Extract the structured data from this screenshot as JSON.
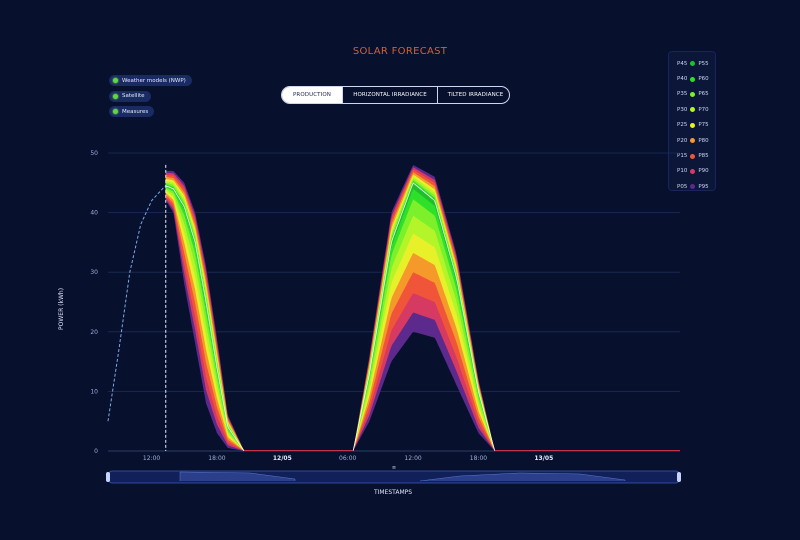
{
  "header": {
    "title": "SOLAR FORECAST"
  },
  "sources": [
    {
      "label": "Weather models (NWP)",
      "color": "#5fd83a"
    },
    {
      "label": "Satellite",
      "color": "#5fd83a"
    },
    {
      "label": "Measures",
      "color": "#5fd83a"
    }
  ],
  "tabs": [
    {
      "label": "PRODUCTION",
      "active": true
    },
    {
      "label": "HORIZONTAL IRRADIANCE",
      "active": false
    },
    {
      "label": "TILTED IRRADIANCE",
      "active": false
    }
  ],
  "legend": [
    {
      "low": "P45",
      "high": "P55",
      "color": "#1fbf2c"
    },
    {
      "low": "P40",
      "high": "P60",
      "color": "#2fe02a"
    },
    {
      "low": "P35",
      "high": "P65",
      "color": "#7cf02a"
    },
    {
      "low": "P30",
      "high": "P70",
      "color": "#b4f52a"
    },
    {
      "low": "P25",
      "high": "P75",
      "color": "#e8f02a"
    },
    {
      "low": "P20",
      "high": "P80",
      "color": "#f59a2a"
    },
    {
      "low": "P15",
      "high": "P85",
      "color": "#f0553a"
    },
    {
      "low": "P10",
      "high": "P90",
      "color": "#d63a62"
    },
    {
      "low": "P05",
      "high": "P95",
      "color": "#5b2a8c"
    }
  ],
  "axis": {
    "ylabel": "POWER (kWh)",
    "xlabel": "TIMESTAMPS"
  },
  "chart_data": {
    "type": "area",
    "ylabel": "POWER (kWh)",
    "xlabel": "TIMESTAMPS",
    "ylim": [
      0,
      50
    ],
    "yticks": [
      0,
      10,
      20,
      30,
      40,
      50
    ],
    "xlim": [
      8,
      60.5
    ],
    "xticks": [
      {
        "t": 12,
        "label": "12:00",
        "bold": false
      },
      {
        "t": 18,
        "label": "18:00",
        "bold": false
      },
      {
        "t": 24,
        "label": "12/05",
        "bold": true
      },
      {
        "t": 30,
        "label": "06:00",
        "bold": false
      },
      {
        "t": 36,
        "label": "12:00",
        "bold": false
      },
      {
        "t": 42,
        "label": "18:00",
        "bold": false
      },
      {
        "t": 48,
        "label": "13/05",
        "bold": true
      }
    ],
    "now_hour": 13.3,
    "grid": true,
    "measures": {
      "x": [
        8.0,
        9.0,
        10.0,
        11.0,
        12.0,
        13.0,
        13.3
      ],
      "y": [
        5,
        17,
        30,
        38,
        42,
        44,
        44.5
      ]
    },
    "forecast_day1": {
      "x": [
        13.3,
        14,
        15,
        16,
        17,
        18,
        19,
        20.5
      ],
      "median": [
        44.5,
        44,
        41,
        35,
        25,
        14,
        4,
        0
      ],
      "p05": [
        42,
        40,
        28,
        18,
        8,
        3,
        0.5,
        0
      ],
      "p95": [
        47,
        47,
        45,
        40,
        31,
        19,
        6,
        0
      ]
    },
    "forecast_day2": {
      "x": [
        30.5,
        32,
        34,
        36,
        38,
        40,
        42,
        43.5
      ],
      "median": [
        0,
        13,
        35,
        45,
        42,
        29,
        10,
        0
      ],
      "p05": [
        0,
        5,
        15,
        20,
        19,
        11,
        3,
        0
      ],
      "p95": [
        0,
        16,
        40,
        48,
        46,
        33,
        12,
        0
      ]
    }
  }
}
